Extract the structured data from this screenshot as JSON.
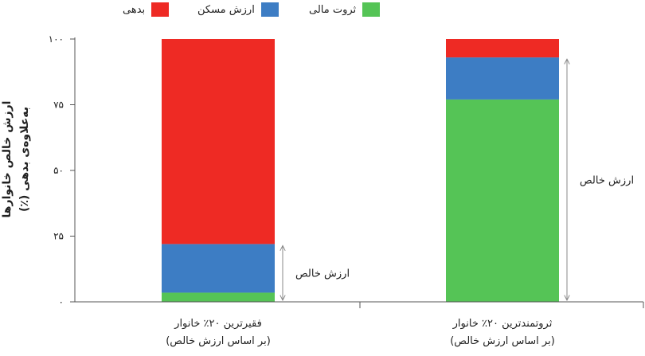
{
  "chart_data": {
    "type": "bar",
    "stacked": true,
    "percent": true,
    "ylabel_line1": "ارزش خالص خانوارها",
    "ylabel_line2": "به‌علاوه‌ی بدهی (٪)",
    "ylim": [
      0,
      100
    ],
    "yticks": [
      0,
      25,
      50,
      75,
      100
    ],
    "ytick_labels": [
      "۰",
      "۲۵",
      "۵۰",
      "۷۵",
      "۱۰۰"
    ],
    "categories": [
      {
        "line1": "فقیرترین ۲۰٪ خانوار",
        "line2": "(بر اساس ارزش خالص)"
      },
      {
        "line1": "ثروتمندترین ۲۰٪ خانوار",
        "line2": "(بر اساس ارزش خالص)"
      }
    ],
    "series": [
      {
        "name": "ثروت مالی",
        "color": "#55c456",
        "values": [
          3.5,
          77
        ]
      },
      {
        "name": "ارزش مسکن",
        "color": "#3d7dc4",
        "values": [
          18.5,
          16
        ]
      },
      {
        "name": "بدهی",
        "color": "#ee2a24",
        "values": [
          78,
          7
        ]
      }
    ],
    "annotations": [
      {
        "text": "ارزش خالص",
        "category_index": 0,
        "from": 0,
        "to": 22
      },
      {
        "text": "ارزش خالص",
        "category_index": 1,
        "from": 0,
        "to": 93
      }
    ],
    "grid": false,
    "legend_position": "top"
  }
}
